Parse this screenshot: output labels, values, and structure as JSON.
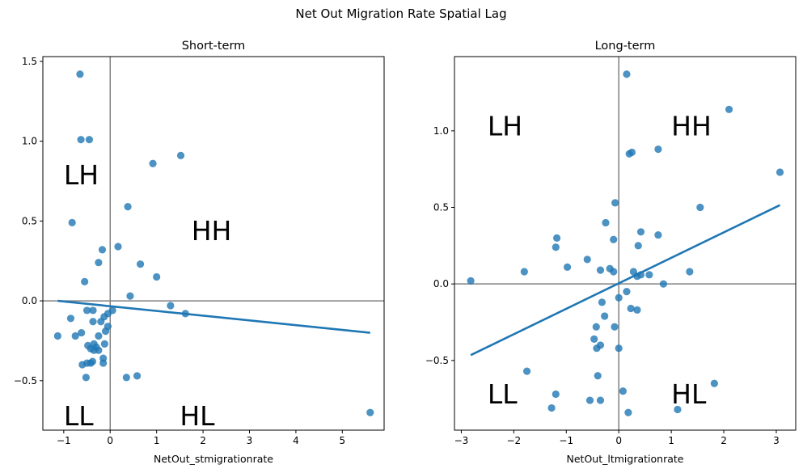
{
  "figure_title": "Net Out Migration Rate Spatial Lag",
  "chart_data": [
    {
      "type": "scatter",
      "title": "Short-term",
      "xlabel": "NetOut_stmigrationrate",
      "ylabel": "",
      "xlim": [
        -1.45,
        5.9
      ],
      "ylim": [
        -0.81,
        1.53
      ],
      "xticks": [
        -1,
        0,
        1,
        2,
        3,
        4,
        5
      ],
      "yticks": [
        -0.5,
        0.0,
        0.5,
        1.0,
        1.5
      ],
      "ytick_labels": [
        "−0.5",
        "0.0",
        "0.5",
        "1.0",
        "1.5"
      ],
      "xtick_labels": [
        "−1",
        "0",
        "1",
        "2",
        "3",
        "4",
        "5"
      ],
      "quadrant_labels": [
        {
          "text": "LH",
          "x": -1.0,
          "y": 0.73
        },
        {
          "text": "HH",
          "x": 1.75,
          "y": 0.38
        },
        {
          "text": "LL",
          "x": -1.0,
          "y": -0.78
        },
        {
          "text": "HL",
          "x": 1.5,
          "y": -0.78
        }
      ],
      "points": [
        [
          -0.65,
          1.42
        ],
        [
          -0.63,
          1.01
        ],
        [
          -0.45,
          1.01
        ],
        [
          0.92,
          0.86
        ],
        [
          1.52,
          0.91
        ],
        [
          -0.82,
          0.49
        ],
        [
          0.38,
          0.59
        ],
        [
          0.17,
          0.34
        ],
        [
          -0.17,
          0.32
        ],
        [
          0.65,
          0.23
        ],
        [
          -0.25,
          0.24
        ],
        [
          1.0,
          0.15
        ],
        [
          -0.55,
          0.12
        ],
        [
          0.43,
          0.03
        ],
        [
          1.3,
          -0.03
        ],
        [
          1.62,
          -0.08
        ],
        [
          -0.5,
          -0.06
        ],
        [
          -0.37,
          -0.06
        ],
        [
          0.05,
          -0.06
        ],
        [
          -0.05,
          -0.08
        ],
        [
          -0.85,
          -0.11
        ],
        [
          -0.13,
          -0.1
        ],
        [
          -0.2,
          -0.13
        ],
        [
          -0.37,
          -0.13
        ],
        [
          -0.05,
          -0.16
        ],
        [
          -0.1,
          -0.19
        ],
        [
          -1.13,
          -0.22
        ],
        [
          -0.75,
          -0.22
        ],
        [
          -0.62,
          -0.2
        ],
        [
          -0.25,
          -0.22
        ],
        [
          -0.48,
          -0.28
        ],
        [
          -0.42,
          -0.3
        ],
        [
          -0.35,
          -0.27
        ],
        [
          -0.3,
          -0.29
        ],
        [
          -0.25,
          -0.31
        ],
        [
          -0.35,
          -0.31
        ],
        [
          -0.12,
          -0.27
        ],
        [
          -0.15,
          -0.36
        ],
        [
          -0.6,
          -0.4
        ],
        [
          -0.5,
          -0.39
        ],
        [
          -0.42,
          -0.39
        ],
        [
          -0.38,
          -0.38
        ],
        [
          -0.15,
          -0.39
        ],
        [
          -0.52,
          -0.48
        ],
        [
          0.35,
          -0.48
        ],
        [
          0.58,
          -0.47
        ],
        [
          5.6,
          -0.7
        ]
      ],
      "regression": {
        "x": [
          -1.13,
          5.6
        ],
        "y": [
          0.0,
          -0.2
        ]
      },
      "reference_lines": {
        "x": 0,
        "y": 0
      }
    },
    {
      "type": "scatter",
      "title": "Long-term",
      "xlabel": "NetOut_ltmigrationrate",
      "ylabel": "",
      "xlim": [
        -3.13,
        3.37
      ],
      "ylim": [
        -0.955,
        1.485
      ],
      "xticks": [
        -3,
        -2,
        -1,
        0,
        1,
        2,
        3
      ],
      "yticks": [
        -0.5,
        0.0,
        0.5,
        1.0
      ],
      "ytick_labels": [
        "−0.5",
        "0.0",
        "0.5",
        "1.0"
      ],
      "xtick_labels": [
        "−3",
        "−2",
        "−1",
        "0",
        "1",
        "2",
        "3"
      ],
      "quadrant_labels": [
        {
          "text": "LH",
          "x": -2.5,
          "y": 0.97
        },
        {
          "text": "HH",
          "x": 1.0,
          "y": 0.97
        },
        {
          "text": "LL",
          "x": -2.5,
          "y": -0.78
        },
        {
          "text": "HL",
          "x": 1.0,
          "y": -0.78
        }
      ],
      "points": [
        [
          0.15,
          1.37
        ],
        [
          2.1,
          1.14
        ],
        [
          0.75,
          0.88
        ],
        [
          0.2,
          0.85
        ],
        [
          0.25,
          0.86
        ],
        [
          3.07,
          0.73
        ],
        [
          -0.07,
          0.53
        ],
        [
          1.55,
          0.5
        ],
        [
          -0.25,
          0.4
        ],
        [
          0.42,
          0.34
        ],
        [
          0.75,
          0.32
        ],
        [
          -1.18,
          0.3
        ],
        [
          -0.1,
          0.29
        ],
        [
          -1.2,
          0.24
        ],
        [
          0.37,
          0.25
        ],
        [
          -0.6,
          0.16
        ],
        [
          -0.98,
          0.11
        ],
        [
          -0.17,
          0.1
        ],
        [
          -1.8,
          0.08
        ],
        [
          -0.35,
          0.09
        ],
        [
          -0.1,
          0.08
        ],
        [
          0.28,
          0.08
        ],
        [
          0.42,
          0.06
        ],
        [
          0.58,
          0.06
        ],
        [
          0.35,
          0.05
        ],
        [
          1.35,
          0.08
        ],
        [
          -2.82,
          0.02
        ],
        [
          0.85,
          0.0
        ],
        [
          0.15,
          -0.05
        ],
        [
          0.0,
          -0.09
        ],
        [
          -0.32,
          -0.12
        ],
        [
          0.23,
          -0.16
        ],
        [
          0.35,
          -0.17
        ],
        [
          -0.27,
          -0.21
        ],
        [
          -0.43,
          -0.28
        ],
        [
          -0.08,
          -0.28
        ],
        [
          -0.47,
          -0.36
        ],
        [
          -0.35,
          -0.4
        ],
        [
          -0.42,
          -0.42
        ],
        [
          0.0,
          -0.42
        ],
        [
          -1.75,
          -0.57
        ],
        [
          -0.4,
          -0.6
        ],
        [
          -1.2,
          -0.72
        ],
        [
          0.08,
          -0.7
        ],
        [
          1.82,
          -0.65
        ],
        [
          -0.55,
          -0.76
        ],
        [
          -0.35,
          -0.76
        ],
        [
          -1.28,
          -0.81
        ],
        [
          0.18,
          -0.84
        ],
        [
          1.12,
          -0.82
        ]
      ],
      "regression": {
        "x": [
          -2.82,
          3.07
        ],
        "y": [
          -0.465,
          0.515
        ]
      },
      "reference_lines": {
        "x": 0,
        "y": 0
      }
    }
  ]
}
